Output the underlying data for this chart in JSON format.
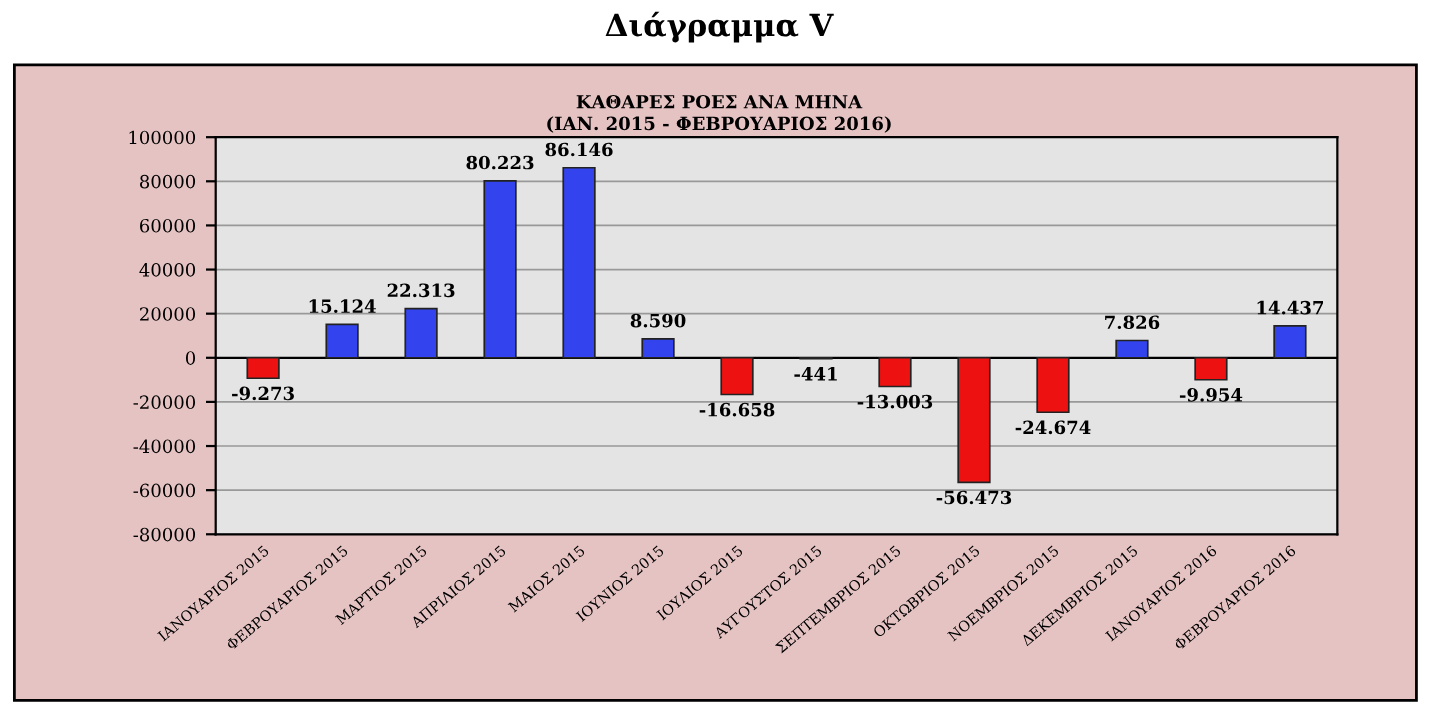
{
  "chart_data": {
    "type": "bar",
    "title": "ΚΑΘΑΡΕΣ ΡΟΕΣ ΑΝΑ ΜΗΝΑ",
    "subtitle": "(ΙΑΝ. 2015 - ΦΕΒΡΟΥΑΡΙΟΣ 2016)",
    "annotations": [
      "Διάγραμμα V"
    ],
    "categories": [
      "ΙΑΝΟΥΑΡΙΟΣ 2015",
      "ΦΕΒΡΟΥΑΡΙΟΣ 2015",
      "ΜΑΡΤΙΟΣ 2015",
      "ΑΠΡΙΛΙΟΣ 2015",
      "ΜΑΙΟΣ 2015",
      "ΙΟΥΝΙΟΣ 2015",
      "ΙΟΥΛΙΟΣ 2015",
      "ΑΥΓΟΥΣΤΟΣ 2015",
      "ΣΕΠΤΕΜΒΡΙΟΣ 2015",
      "ΟΚΤΩΒΡΙΟΣ 2015",
      "ΝΟΕΜΒΡΙΟΣ 2015",
      "ΔΕΚΕΜΒΡΙΟΣ 2015",
      "ΙΑΝΟΥΑΡΙΟΣ 2016",
      "ΦΕΒΡΟΥΑΡΙΟΣ 2016"
    ],
    "values": [
      -9273,
      15124,
      22313,
      80223,
      86146,
      8590,
      -16658,
      -441,
      -13003,
      -56473,
      -24674,
      7826,
      -9954,
      14437
    ],
    "value_labels": [
      "-9.273",
      "15.124",
      "22.313",
      "80.223",
      "86.146",
      "8.590",
      "-16.658",
      "-441",
      "-13.003",
      "-56.473",
      "-24.674",
      "7.826",
      "-9.954",
      "14.437"
    ],
    "colors": [
      "#ee1111",
      "#3344ee",
      "#3344ee",
      "#3344ee",
      "#3344ee",
      "#3344ee",
      "#ee1111",
      "#ee1111",
      "#ee1111",
      "#ee1111",
      "#ee1111",
      "#3344ee",
      "#ee1111",
      "#3344ee"
    ],
    "ylim": [
      -80000,
      100000
    ],
    "yticks": [
      -80000,
      -60000,
      -40000,
      -20000,
      0,
      20000,
      40000,
      60000,
      80000,
      100000
    ],
    "grid": "y",
    "legend": false
  }
}
